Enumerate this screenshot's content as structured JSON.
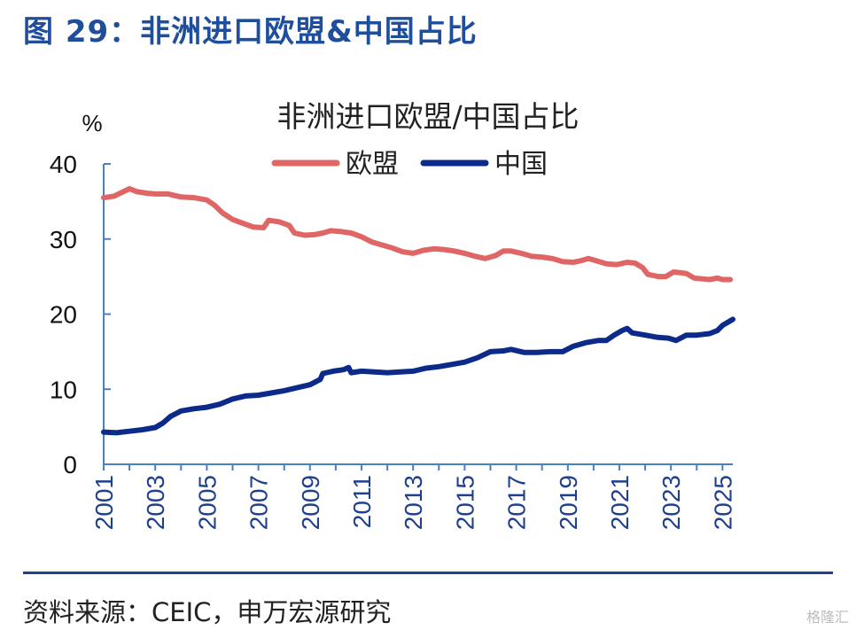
{
  "figure_title": "图 29：非洲进口欧盟&中国占比",
  "source": "资料来源：CEIC，申万宏源研究",
  "watermark": "格隆汇",
  "colors": {
    "eu": "#e06666",
    "china": "#0b2a8a",
    "axis": "#4a7fc1",
    "title": "#1f4e9c"
  },
  "chart_data": {
    "type": "line",
    "title": "非洲进口欧盟/中国占比",
    "ylabel": "%",
    "xlabel": "",
    "ylim": [
      0,
      40
    ],
    "xlim": [
      2001,
      2025.4
    ],
    "yticks": [
      "0",
      "10",
      "20",
      "30",
      "40"
    ],
    "xticks": [
      "2001",
      "2003",
      "2005",
      "2007",
      "2009",
      "2011",
      "2013",
      "2015",
      "2017",
      "2019",
      "2021",
      "2023",
      "2025"
    ],
    "legend_position": "top-center",
    "grid": false,
    "series": [
      {
        "name": "欧盟",
        "color": "#e06666",
        "points": [
          [
            2001.0,
            35.5
          ],
          [
            2001.4,
            35.7
          ],
          [
            2001.7,
            36.2
          ],
          [
            2002.0,
            36.7
          ],
          [
            2002.3,
            36.3
          ],
          [
            2002.7,
            36.1
          ],
          [
            2003.0,
            36.0
          ],
          [
            2003.5,
            36.0
          ],
          [
            2004.0,
            35.6
          ],
          [
            2004.5,
            35.5
          ],
          [
            2005.0,
            35.2
          ],
          [
            2005.3,
            34.5
          ],
          [
            2005.6,
            33.5
          ],
          [
            2006.0,
            32.6
          ],
          [
            2006.4,
            32.1
          ],
          [
            2006.8,
            31.6
          ],
          [
            2007.2,
            31.5
          ],
          [
            2007.4,
            32.5
          ],
          [
            2007.8,
            32.3
          ],
          [
            2008.2,
            31.8
          ],
          [
            2008.4,
            30.8
          ],
          [
            2008.8,
            30.5
          ],
          [
            2009.2,
            30.6
          ],
          [
            2009.5,
            30.8
          ],
          [
            2009.8,
            31.1
          ],
          [
            2010.2,
            31.0
          ],
          [
            2010.6,
            30.8
          ],
          [
            2011.0,
            30.3
          ],
          [
            2011.4,
            29.6
          ],
          [
            2011.8,
            29.2
          ],
          [
            2012.2,
            28.8
          ],
          [
            2012.6,
            28.3
          ],
          [
            2013.0,
            28.1
          ],
          [
            2013.4,
            28.5
          ],
          [
            2013.8,
            28.7
          ],
          [
            2014.2,
            28.6
          ],
          [
            2014.6,
            28.4
          ],
          [
            2015.0,
            28.1
          ],
          [
            2015.4,
            27.7
          ],
          [
            2015.8,
            27.4
          ],
          [
            2016.2,
            27.8
          ],
          [
            2016.5,
            28.4
          ],
          [
            2016.8,
            28.4
          ],
          [
            2017.2,
            28.1
          ],
          [
            2017.6,
            27.7
          ],
          [
            2018.0,
            27.6
          ],
          [
            2018.4,
            27.4
          ],
          [
            2018.8,
            27.0
          ],
          [
            2019.2,
            26.9
          ],
          [
            2019.5,
            27.1
          ],
          [
            2019.8,
            27.4
          ],
          [
            2020.1,
            27.1
          ],
          [
            2020.5,
            26.7
          ],
          [
            2020.9,
            26.6
          ],
          [
            2021.3,
            26.9
          ],
          [
            2021.6,
            26.8
          ],
          [
            2021.9,
            26.2
          ],
          [
            2022.1,
            25.3
          ],
          [
            2022.5,
            25.0
          ],
          [
            2022.8,
            25.0
          ],
          [
            2023.1,
            25.6
          ],
          [
            2023.4,
            25.5
          ],
          [
            2023.6,
            25.4
          ],
          [
            2023.9,
            24.8
          ],
          [
            2024.2,
            24.7
          ],
          [
            2024.5,
            24.6
          ],
          [
            2024.8,
            24.8
          ],
          [
            2025.0,
            24.6
          ],
          [
            2025.3,
            24.6
          ]
        ]
      },
      {
        "name": "中国",
        "color": "#0b2a8a",
        "points": [
          [
            2001.0,
            4.3
          ],
          [
            2001.5,
            4.2
          ],
          [
            2002.0,
            4.4
          ],
          [
            2002.5,
            4.6
          ],
          [
            2003.0,
            4.9
          ],
          [
            2003.3,
            5.5
          ],
          [
            2003.6,
            6.4
          ],
          [
            2004.0,
            7.1
          ],
          [
            2004.5,
            7.4
          ],
          [
            2005.0,
            7.6
          ],
          [
            2005.5,
            8.0
          ],
          [
            2006.0,
            8.7
          ],
          [
            2006.5,
            9.1
          ],
          [
            2007.0,
            9.2
          ],
          [
            2007.5,
            9.5
          ],
          [
            2008.0,
            9.8
          ],
          [
            2008.5,
            10.2
          ],
          [
            2009.0,
            10.6
          ],
          [
            2009.4,
            11.3
          ],
          [
            2009.5,
            12.1
          ],
          [
            2009.9,
            12.4
          ],
          [
            2010.3,
            12.6
          ],
          [
            2010.5,
            12.9
          ],
          [
            2010.6,
            12.2
          ],
          [
            2011.0,
            12.4
          ],
          [
            2011.5,
            12.3
          ],
          [
            2012.0,
            12.2
          ],
          [
            2012.5,
            12.3
          ],
          [
            2013.0,
            12.4
          ],
          [
            2013.5,
            12.8
          ],
          [
            2014.0,
            13.0
          ],
          [
            2014.5,
            13.3
          ],
          [
            2015.0,
            13.6
          ],
          [
            2015.5,
            14.2
          ],
          [
            2016.0,
            15.0
          ],
          [
            2016.5,
            15.1
          ],
          [
            2016.8,
            15.3
          ],
          [
            2017.3,
            14.9
          ],
          [
            2017.8,
            14.9
          ],
          [
            2018.3,
            15.0
          ],
          [
            2018.8,
            15.0
          ],
          [
            2019.2,
            15.7
          ],
          [
            2019.7,
            16.2
          ],
          [
            2020.2,
            16.5
          ],
          [
            2020.5,
            16.5
          ],
          [
            2020.8,
            17.2
          ],
          [
            2021.1,
            17.8
          ],
          [
            2021.3,
            18.1
          ],
          [
            2021.5,
            17.5
          ],
          [
            2022.0,
            17.2
          ],
          [
            2022.5,
            16.9
          ],
          [
            2022.9,
            16.8
          ],
          [
            2023.2,
            16.5
          ],
          [
            2023.6,
            17.2
          ],
          [
            2024.0,
            17.2
          ],
          [
            2024.5,
            17.4
          ],
          [
            2024.8,
            17.8
          ],
          [
            2025.0,
            18.5
          ],
          [
            2025.4,
            19.3
          ]
        ]
      }
    ]
  }
}
